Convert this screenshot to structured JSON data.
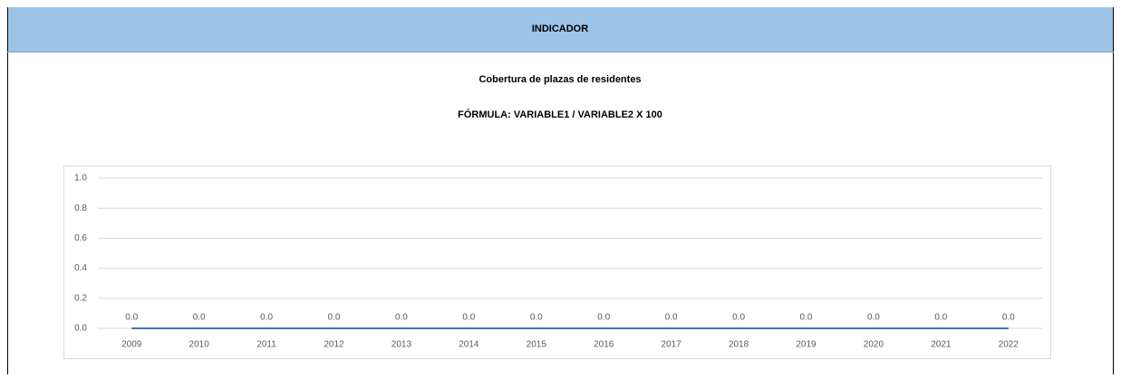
{
  "header": {
    "title": "INDICADOR",
    "subtitle": "Cobertura de plazas de residentes",
    "formula": "FÓRMULA: VARIABLE1 / VARIABLE2 X 100"
  },
  "chart_data": {
    "type": "line",
    "categories": [
      "2009",
      "2010",
      "2011",
      "2012",
      "2013",
      "2014",
      "2015",
      "2016",
      "2017",
      "2018",
      "2019",
      "2020",
      "2021",
      "2022"
    ],
    "series": [
      {
        "name": null,
        "color": "#4472c4",
        "values": [
          0,
          0,
          0,
          0,
          0,
          0,
          0,
          0,
          0,
          0,
          0,
          0,
          0,
          0
        ],
        "value_labels": [
          "0.0",
          "0.0",
          "0.0",
          "0.0",
          "0.0",
          "0.0",
          "0.0",
          "0.0",
          "0.0",
          "0.0",
          "0.0",
          "0.0",
          "0.0",
          "0.0"
        ]
      }
    ],
    "ylim": [
      0,
      1
    ],
    "yticks": [
      {
        "value": 0,
        "label": "0.0"
      },
      0.2,
      0.4,
      0.6,
      0.8,
      {
        "value": 1,
        "label": "1.0"
      }
    ],
    "grid": true
  }
}
